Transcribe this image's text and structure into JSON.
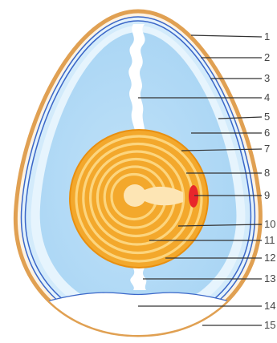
{
  "colors": {
    "background": "#ffffff",
    "shell": "#e0a052",
    "membrane": "#3b67c8",
    "albumen_outer": "#cfe8fa",
    "albumen_inner": "#b4dcf7",
    "air_cell": "#ffffff",
    "yolk_outer": "#f3a82c",
    "yolk_ring_light": "#fcd57e",
    "yolk_center": "#fde5b4",
    "germinal_disc": "#e8262b",
    "leader_line": "#333333",
    "chalaza": "#ffffff"
  },
  "labels": [
    {
      "id": "l1",
      "text": "1"
    },
    {
      "id": "l2",
      "text": "2"
    },
    {
      "id": "l3",
      "text": "3"
    },
    {
      "id": "l4",
      "text": "4"
    },
    {
      "id": "l5",
      "text": "5"
    },
    {
      "id": "l6",
      "text": "6"
    },
    {
      "id": "l7",
      "text": "7"
    },
    {
      "id": "l8",
      "text": "8"
    },
    {
      "id": "l9",
      "text": "9"
    },
    {
      "id": "l10",
      "text": "10"
    },
    {
      "id": "l11",
      "text": "11"
    },
    {
      "id": "l12",
      "text": "12"
    },
    {
      "id": "l13",
      "text": "13"
    },
    {
      "id": "l14",
      "text": "14"
    },
    {
      "id": "l15",
      "text": "15"
    }
  ]
}
